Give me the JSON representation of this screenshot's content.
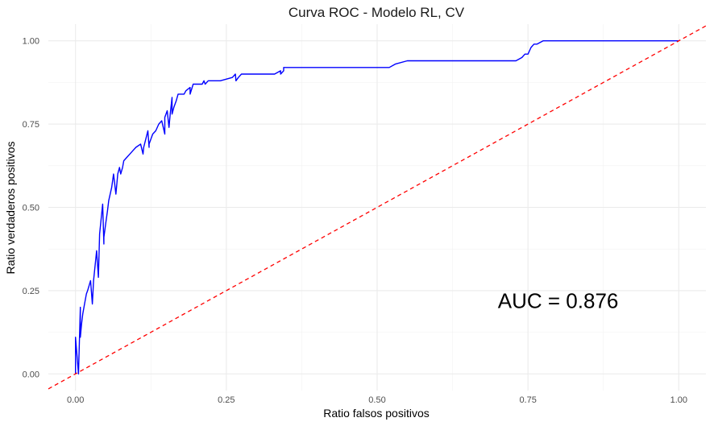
{
  "chart_data": {
    "type": "line",
    "title": "Curva ROC - Modelo RL, CV",
    "xlabel": "Ratio falsos positivos",
    "ylabel": "Ratio verdaderos positivos",
    "xlim": [
      -0.045,
      1.045
    ],
    "ylim": [
      -0.05,
      1.05
    ],
    "xticks": [
      0.0,
      0.25,
      0.5,
      0.75,
      1.0
    ],
    "xtick_labels": [
      "0.00",
      "0.25",
      "0.50",
      "0.75",
      "1.00"
    ],
    "yticks": [
      0.0,
      0.25,
      0.5,
      0.75,
      1.0
    ],
    "ytick_labels": [
      "0.00",
      "0.25",
      "0.50",
      "0.75",
      "1.00"
    ],
    "grid": true,
    "annotation": {
      "text": "AUC = 0.876",
      "x": 0.8,
      "y": 0.22
    },
    "series": [
      {
        "color": "#0000ff",
        "style": "solid",
        "x": [
          0.0,
          0.0,
          0.005,
          0.008,
          0.008,
          0.01,
          0.012,
          0.015,
          0.018,
          0.02,
          0.025,
          0.028,
          0.03,
          0.035,
          0.038,
          0.04,
          0.045,
          0.047,
          0.047,
          0.05,
          0.053,
          0.055,
          0.06,
          0.063,
          0.067,
          0.068,
          0.07,
          0.073,
          0.075,
          0.078,
          0.08,
          0.085,
          0.09,
          0.095,
          0.1,
          0.108,
          0.112,
          0.113,
          0.12,
          0.122,
          0.122,
          0.128,
          0.133,
          0.138,
          0.143,
          0.148,
          0.148,
          0.152,
          0.155,
          0.157,
          0.16,
          0.16,
          0.163,
          0.167,
          0.17,
          0.175,
          0.18,
          0.183,
          0.19,
          0.19,
          0.195,
          0.2,
          0.21,
          0.213,
          0.215,
          0.22,
          0.232,
          0.24,
          0.26,
          0.265,
          0.266,
          0.27,
          0.275,
          0.33,
          0.34,
          0.34,
          0.345,
          0.345,
          0.35,
          0.52,
          0.53,
          0.55,
          0.58,
          0.6,
          0.63,
          0.65,
          0.67,
          0.7,
          0.73,
          0.74,
          0.745,
          0.75,
          0.755,
          0.76,
          0.765,
          0.775,
          0.8,
          0.85,
          0.9,
          0.95,
          1.0
        ],
        "y": [
          0.0,
          0.11,
          0.0,
          0.2,
          0.11,
          0.15,
          0.18,
          0.21,
          0.24,
          0.25,
          0.28,
          0.21,
          0.28,
          0.37,
          0.29,
          0.42,
          0.51,
          0.39,
          0.41,
          0.45,
          0.49,
          0.52,
          0.56,
          0.6,
          0.54,
          0.56,
          0.6,
          0.62,
          0.6,
          0.62,
          0.64,
          0.65,
          0.66,
          0.67,
          0.68,
          0.69,
          0.66,
          0.68,
          0.73,
          0.68,
          0.69,
          0.72,
          0.73,
          0.75,
          0.76,
          0.72,
          0.77,
          0.79,
          0.74,
          0.78,
          0.83,
          0.78,
          0.8,
          0.82,
          0.84,
          0.84,
          0.84,
          0.85,
          0.86,
          0.84,
          0.87,
          0.87,
          0.87,
          0.88,
          0.87,
          0.88,
          0.88,
          0.88,
          0.89,
          0.9,
          0.88,
          0.89,
          0.9,
          0.9,
          0.91,
          0.9,
          0.91,
          0.92,
          0.92,
          0.92,
          0.93,
          0.94,
          0.94,
          0.94,
          0.94,
          0.94,
          0.94,
          0.94,
          0.94,
          0.95,
          0.96,
          0.96,
          0.98,
          0.99,
          0.99,
          1.0,
          1.0,
          1.0,
          1.0,
          1.0,
          1.0
        ]
      },
      {
        "color": "#ff0000",
        "style": "dashed",
        "x": [
          -0.045,
          1.045
        ],
        "y": [
          -0.045,
          1.045
        ]
      }
    ]
  }
}
